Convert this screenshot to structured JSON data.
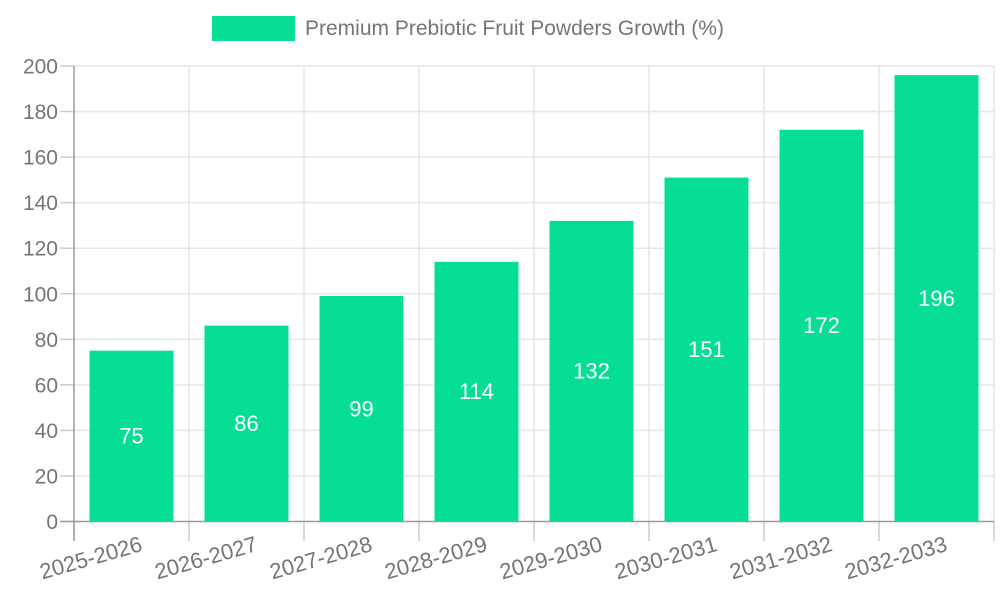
{
  "legend": {
    "label": "Premium Prebiotic Fruit Powders Growth (%)"
  },
  "chart_data": {
    "type": "bar",
    "title": "Premium Prebiotic Fruit Powders Growth (%)",
    "categories": [
      "2025-2026",
      "2026-2027",
      "2027-2028",
      "2028-2029",
      "2029-2030",
      "2030-2031",
      "2031-2032",
      "2032-2033"
    ],
    "values": [
      75,
      86,
      99,
      114,
      132,
      151,
      172,
      196
    ],
    "xlabel": "",
    "ylabel": "",
    "ylim": [
      0,
      200
    ],
    "ytick_step": 20,
    "yticks": [
      0,
      20,
      40,
      60,
      80,
      100,
      120,
      140,
      160,
      180,
      200
    ],
    "grid": true,
    "legend_position": "top",
    "bar_color": "#06DD95",
    "bar_label_color": "#ffffff",
    "axis_color": "#9a9a9a",
    "grid_color": "#e6e6e6",
    "tick_color": "#cccccc",
    "tick_text_color": "#757575",
    "x_label_rotation_deg": -16
  }
}
